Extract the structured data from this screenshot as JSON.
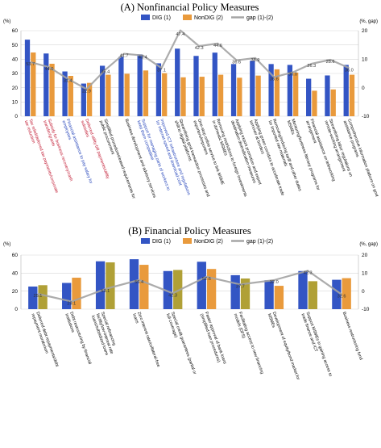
{
  "chart_data": [
    {
      "type": "bar",
      "title": "(A) Nonfinancial Policy Measures",
      "left_unit": "(%)",
      "right_unit": "(%, gap)",
      "left_ylim": [
        0,
        60
      ],
      "left_ticks": [
        "0",
        "10",
        "20",
        "30",
        "40",
        "50",
        "60"
      ],
      "right_ylim": [
        -10,
        20
      ],
      "right_ticks": [
        "-10",
        "0",
        "10",
        "20"
      ],
      "grid": true,
      "legend": [
        "DIG (1)",
        "NonDIG (2)",
        "gap (1)-(2)"
      ],
      "categories": [
        "Tax relief/deferred tax payments/corporate tax reduction",
        "Subsidy for business recovery/cash transfer/grants",
        "Financial assistance to pay salary for employees",
        "Deferred utility bill payments/utility subsidies",
        "Simplified procedures/eased requirements for public procurement",
        "Business development and advisory services",
        "Support for managing parts of workers to keep them competitive",
        "Improved ICT infrastructure and regulations for internet speed and download cost",
        "Streamlining govt transaction processes and shift to digital platforms",
        "One-stop online service to link MSME exporters/importers",
        "Removing restrictions to foreign investments in domestic MSMEs",
        "Applying export promotion and export destination diversification measures",
        "Applying green corridors to accelerate trade turnover at borders",
        "Removing/reducing tariff and other duties for imported raw materials",
        "Mentoring/business literacy programs for MSMEs",
        "Financial assistance on teleworking arrangement",
        "Streamlining labor regulations on remote-working arrangement",
        "Comprehensive information platform on govt assistance programs"
      ],
      "category_label_colors": [
        "red",
        "red",
        "blue",
        "red",
        "black",
        "black",
        "blue",
        "blue",
        "black",
        "black",
        "black",
        "black",
        "black",
        "black",
        "black",
        "black",
        "black",
        "black"
      ],
      "series": [
        {
          "name": "DIG (1)",
          "values": [
            53.7,
            44.0,
            31.4,
            22.9,
            35.4,
            41.7,
            43.4,
            37.1,
            47.4,
            42.3,
            44.6,
            36.6,
            38.9,
            36.6,
            36.0,
            26.3,
            28.6,
            36.0
          ]
        },
        {
          "name": "NonDIG (2)",
          "values": [
            44.7,
            36.8,
            28.3,
            23.4,
            29.1,
            29.8,
            32.1,
            30.2,
            27.3,
            27.7,
            29.1,
            27.0,
            28.5,
            32.9,
            30.6,
            17.9,
            18.8,
            29.1
          ]
        },
        {
          "name": "gap (1)-(2)",
          "values": [
            9.0,
            7.2,
            3.1,
            -0.5,
            6.3,
            11.9,
            11.3,
            6.9,
            20.1,
            14.6,
            15.5,
            9.6,
            10.4,
            3.7,
            5.4,
            8.4,
            9.8,
            6.9
          ]
        }
      ],
      "data_labels": [
        "53.7",
        "44.0",
        "31.4",
        "22.9",
        "35.4",
        "41.7",
        "43.4",
        "37.1",
        "47.4",
        "42.3",
        "44.6",
        "36.6",
        "38.9",
        "36.6",
        "36.0",
        "26.3",
        "28.6",
        "36.0"
      ]
    },
    {
      "type": "bar",
      "title": "(B) Financial Policy Measures",
      "left_unit": "(%)",
      "right_unit": "(%, gap)",
      "left_ylim": [
        0,
        60
      ],
      "left_ticks": [
        "0",
        "20",
        "40",
        "60"
      ],
      "right_ylim": [
        -10,
        20
      ],
      "right_ticks": [
        "-10",
        "0",
        "10",
        "20"
      ],
      "grid": true,
      "legend": [
        "DIG (1)",
        "NonDIG (2)",
        "gap (1)-(2)"
      ],
      "categories": [
        "Deferred debt repayments/debt repayment moratorium",
        "Debt restructuring by financial institutions",
        "Special refinancing facility/low-interest rate loans/subsidized loans",
        "Zero interest rate/collateral-free loans",
        "Special credit guarantees (partial or full coverage)",
        "Faster approval of bank loans (simplified loan procedures)",
        "Facilitating access to new financing models (DFS)",
        "Development of equity/bond market for MSMEs",
        "Support MSMEs in gaining access to trade finance and ICT",
        "Business restructuring fund"
      ],
      "series": [
        {
          "name": "DIG (1)",
          "values": [
            25.1,
            29.1,
            53.1,
            55.4,
            42.3,
            52.6,
            37.7,
            32.0,
            42.3,
            32.6
          ]
        },
        {
          "name": "NonDIG (2)",
          "values": [
            26.6,
            34.9,
            51.9,
            49.2,
            43.5,
            44.6,
            34.0,
            25.9,
            31.0,
            34.4
          ]
        },
        {
          "name": "gap (1)-(2)",
          "values": [
            -1.5,
            -5.8,
            1.2,
            6.2,
            -1.2,
            8.0,
            3.7,
            6.1,
            11.3,
            -1.8
          ]
        }
      ],
      "data_labels": [
        "25.1",
        "29.1",
        "53.1",
        "55.4",
        "42.3",
        "52.6",
        "37.7",
        "32.0",
        "42.3",
        "32.6"
      ]
    }
  ],
  "colors": {
    "dig": "#3355c4",
    "nondig": "#e99a3c",
    "nondig_alt": "#b0a036",
    "gap": "#a3a3a3",
    "grid": "#d8d8d8"
  }
}
